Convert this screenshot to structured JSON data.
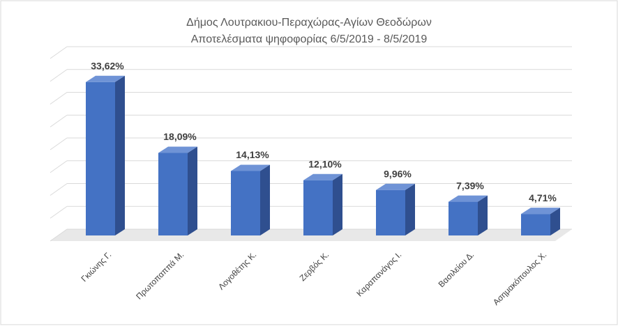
{
  "chart_data": {
    "type": "bar",
    "title": "Δήμος Λουτρακιου-Περαχώρας-Αγίων  Θεοδώρων",
    "subtitle": "Αποτελέσματα ψηφοφορίας  6/5/2019 - 8/5/2019",
    "categories": [
      "Γκιώνης Γ.",
      "Πρωτοπαππά Μ.",
      "Λογοθέτης Κ.",
      "Ζερβός Κ.",
      "Καραπανάγος Ι.",
      "Βασιλείου Δ.",
      "Ασημακόπουλος Χ."
    ],
    "values": [
      33.62,
      18.09,
      14.13,
      12.1,
      9.96,
      7.39,
      4.71
    ],
    "value_labels": [
      "33,62%",
      "18,09%",
      "14,13%",
      "12,10%",
      "9,96%",
      "7,39%",
      "4,71%"
    ],
    "color": "#4472c4",
    "ylim": [
      0,
      40
    ],
    "yticks": [
      0,
      5,
      10,
      15,
      20,
      25,
      30,
      35,
      40
    ],
    "grid": true
  }
}
